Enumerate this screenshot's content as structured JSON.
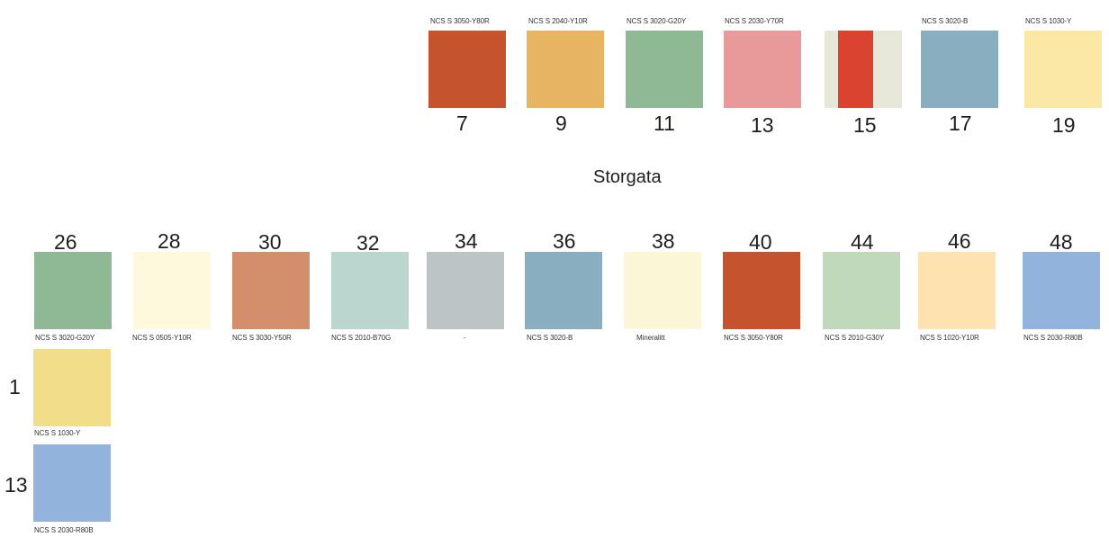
{
  "street_name": "Storgata",
  "top_row": [
    {
      "number": "7",
      "code": "NCS S 3050-Y80R",
      "color": "#C4532E"
    },
    {
      "number": "9",
      "code": "NCS S 2040-Y10R",
      "color": "#E7B462"
    },
    {
      "number": "11",
      "code": "NCS S 3020-G20Y",
      "color": "#8FB995"
    },
    {
      "number": "13",
      "code": "NCS S 2030-Y70R",
      "color": "#E79A99"
    },
    {
      "number": "15",
      "code": "",
      "colors": [
        "#E8E8D8",
        "#D94330",
        "#E8E8D8"
      ]
    },
    {
      "number": "17",
      "code": "NCS S 3020-B",
      "color": "#89AEC0"
    },
    {
      "number": "19",
      "code": "NCS S 1030-Y",
      "color": "#FBE8A6"
    }
  ],
  "bottom_row": [
    {
      "number": "26",
      "code": "NCS S 3020-G20Y",
      "color": "#8FB995"
    },
    {
      "number": "28",
      "code": "NCS S 0505-Y10R",
      "color": "#FEF9DC"
    },
    {
      "number": "30",
      "code": "NCS S 3030-Y50R",
      "color": "#D38E6C"
    },
    {
      "number": "32",
      "code": "NCS S 2010-B70G",
      "color": "#BAD6CF"
    },
    {
      "number": "34",
      "code": "-",
      "color": "#BCC4C6"
    },
    {
      "number": "36",
      "code": "NCS S 3020-B",
      "color": "#89AEC0"
    },
    {
      "number": "38",
      "code": "Mineralitt",
      "color": "#FBF6D6"
    },
    {
      "number": "40",
      "code": "NCS S 3050-Y80R",
      "color": "#C4532E"
    },
    {
      "number": "44",
      "code": "NCS S 2010-G30Y",
      "color": "#C0D9BB"
    },
    {
      "number": "46",
      "code": "NCS S 1020-Y10R",
      "color": "#FEE2B0"
    },
    {
      "number": "48",
      "code": "NCS S 2030-R80B",
      "color": "#91B3DC"
    }
  ],
  "side_column": [
    {
      "number": "1",
      "code": "NCS S 1030-Y",
      "color": "#F2DE8A"
    },
    {
      "number": "13",
      "code": "NCS S 2030-R80B",
      "color": "#91B3DC"
    }
  ]
}
